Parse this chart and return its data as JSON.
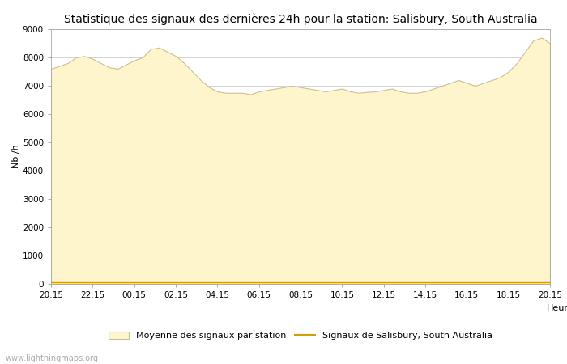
{
  "title": "Statistique des signaux des dernières 24h pour la station: Salisbury, South Australia",
  "xlabel": "Heure",
  "ylabel": "Nb /h",
  "ylim": [
    0,
    9000
  ],
  "yticks": [
    0,
    1000,
    2000,
    3000,
    4000,
    5000,
    6000,
    7000,
    8000,
    9000
  ],
  "xtick_labels": [
    "20:15",
    "22:15",
    "00:15",
    "02:15",
    "04:15",
    "06:15",
    "08:15",
    "10:15",
    "12:15",
    "14:15",
    "16:15",
    "18:15",
    "20:15"
  ],
  "fill_color": "#FFF5CC",
  "fill_edge_color": "#D4C080",
  "line_color": "#D4A000",
  "background_color": "#ffffff",
  "grid_color": "#cccccc",
  "title_fontsize": 10,
  "legend_label_fill": "Moyenne des signaux par station",
  "legend_label_line": "Signaux de Salisbury, South Australia",
  "watermark": "www.lightningmaps.org",
  "mean_y": [
    7600,
    7700,
    7800,
    8000,
    8050,
    7950,
    7800,
    7650,
    7600,
    7750,
    7900,
    8000,
    8300,
    8350,
    8200,
    8050,
    7800,
    7500,
    7200,
    6950,
    6800,
    6750,
    6750,
    6750,
    6700,
    6800,
    6850,
    6900,
    6950,
    7000,
    6950,
    6900,
    6850,
    6800,
    6850,
    6900,
    6800,
    6750,
    6780,
    6800,
    6850,
    6900,
    6800,
    6750,
    6750,
    6800,
    6900,
    7000,
    7100,
    7200,
    7100,
    7000,
    7100,
    7200,
    7300,
    7500,
    7800,
    8200,
    8600,
    8700,
    8500
  ],
  "station_y": [
    50,
    50,
    50,
    50,
    50,
    50,
    50,
    50,
    50,
    50,
    50,
    50,
    50,
    50,
    50,
    50,
    50,
    50,
    50,
    50,
    50,
    50,
    50,
    50,
    50,
    50,
    50,
    50,
    50,
    50,
    50,
    50,
    50,
    50,
    50,
    50,
    50,
    50,
    50,
    50,
    50,
    50,
    50,
    50,
    50,
    50,
    50,
    50,
    50,
    50,
    50,
    50,
    50,
    50,
    50,
    50,
    50,
    50,
    50,
    50,
    50
  ]
}
